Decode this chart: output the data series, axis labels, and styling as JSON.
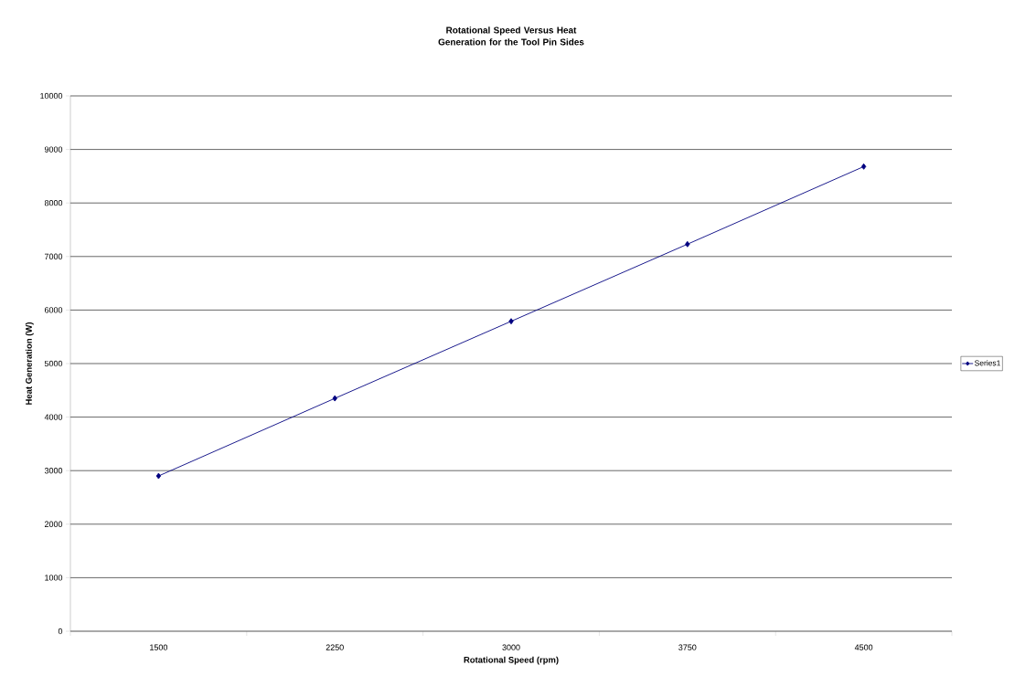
{
  "chart_data": {
    "type": "line",
    "title": "Rotational Speed Versus Heat Generation for the Tool Pin Sides",
    "xlabel": "Rotational Speed (rpm)",
    "ylabel": "Heat Generation (W)",
    "categories": [
      "1500",
      "2250",
      "3000",
      "3750",
      "4500"
    ],
    "series": [
      {
        "name": "Series1",
        "color": "#000080",
        "values": [
          2900,
          4350,
          5790,
          7230,
          8680
        ]
      }
    ],
    "ylim": [
      0,
      10000
    ],
    "yticks": [
      0,
      1000,
      2000,
      3000,
      4000,
      5000,
      6000,
      7000,
      8000,
      9000,
      10000
    ],
    "grid": "y",
    "legend": "right",
    "marker": "diamond",
    "line_style": "solid"
  }
}
